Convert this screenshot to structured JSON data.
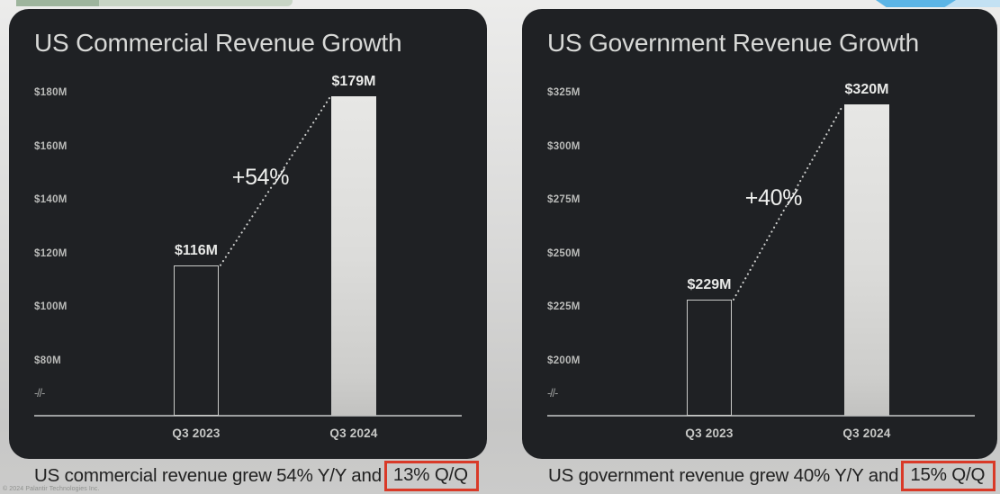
{
  "chart_data": [
    {
      "type": "bar",
      "title": "US Commercial Revenue Growth",
      "categories": [
        "Q3 2023",
        "Q3 2024"
      ],
      "values": [
        116,
        179
      ],
      "value_labels": [
        "$116M",
        "$179M"
      ],
      "unit": "USD millions",
      "ylim": [
        80,
        185
      ],
      "yticks": [
        180,
        160,
        140,
        120,
        100,
        80
      ],
      "ytick_labels": [
        "$180M",
        "$160M",
        "$140M",
        "$120M",
        "$100M",
        "$80M"
      ],
      "axis_break": true,
      "axis_break_label": "-//-",
      "growth_annotation": "+54%",
      "caption": "US commercial revenue grew 54% Y/Y and",
      "caption_highlight": "13% Q/Q"
    },
    {
      "type": "bar",
      "title": "US Government Revenue Growth",
      "categories": [
        "Q3 2023",
        "Q3 2024"
      ],
      "values": [
        229,
        320
      ],
      "value_labels": [
        "$229M",
        "$320M"
      ],
      "unit": "USD millions",
      "ylim": [
        200,
        330
      ],
      "yticks": [
        325,
        300,
        275,
        250,
        225,
        200
      ],
      "ytick_labels": [
        "$325M",
        "$300M",
        "$275M",
        "$250M",
        "$225M",
        "$200M"
      ],
      "axis_break": true,
      "axis_break_label": "-//-",
      "growth_annotation": "+40%",
      "caption": "US government revenue grew 40% Y/Y and",
      "caption_highlight": "15% Q/Q"
    }
  ],
  "footer": {
    "copyright": "© 2024 Palantir Technologies Inc."
  },
  "colors": {
    "panel_bg": "#1f2124",
    "bar_fill": "#dcdcda",
    "bar_outline": "#c9cac8",
    "highlight_red": "#d93a28",
    "caption_text": "#222222",
    "deco_green_dark": "#9eb59d",
    "deco_green_light": "#c8d5c5",
    "deco_blue_mid": "#5cb5e6",
    "deco_blue_light": "#c3e1f3"
  }
}
